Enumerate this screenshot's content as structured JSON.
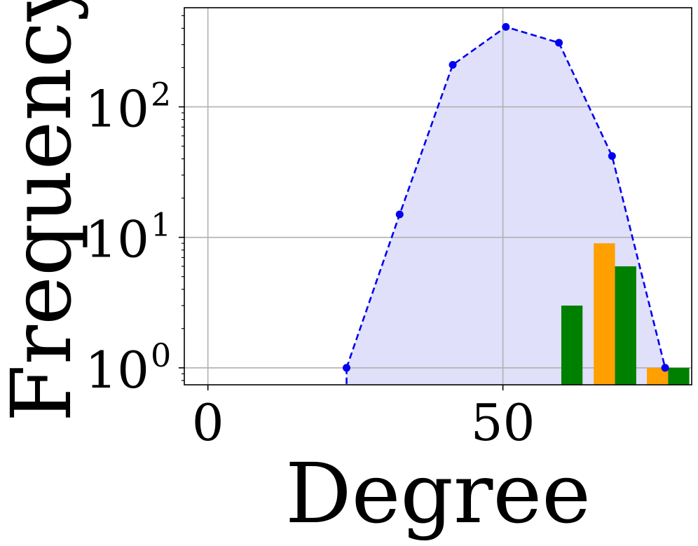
{
  "chart_data": {
    "type": "line",
    "xlabel": "Degree",
    "ylabel": "Frequency",
    "title": "",
    "xlim": [
      -4,
      82
    ],
    "ylim_log10": [
      -0.13,
      2.76
    ],
    "y_scale": "log",
    "grid": true,
    "x_ticks": [
      0,
      50
    ],
    "x_tick_labels": [
      "0",
      "50"
    ],
    "y_ticks": [
      1,
      10,
      100
    ],
    "y_tick_labels": [
      {
        "base": "10",
        "exp": "0"
      },
      {
        "base": "10",
        "exp": "1"
      },
      {
        "base": "10",
        "exp": "2"
      }
    ],
    "line_series": {
      "color": "#0000ee",
      "fill": "#e0e0fa",
      "style": "dashed",
      "x": [
        23.5,
        32.5,
        41.5,
        50.5,
        59.5,
        68.5,
        77.5
      ],
      "y": [
        1,
        15,
        210,
        410,
        310,
        42,
        1
      ]
    },
    "bar_series": [
      {
        "color": "#ff9f00",
        "x": [
          67.2,
          76.2
        ],
        "y": [
          9,
          1
        ]
      },
      {
        "color": "#008000",
        "x": [
          61.7,
          70.8,
          79.8
        ],
        "y": [
          3,
          6,
          1
        ]
      }
    ],
    "bar_width": 3.6
  }
}
